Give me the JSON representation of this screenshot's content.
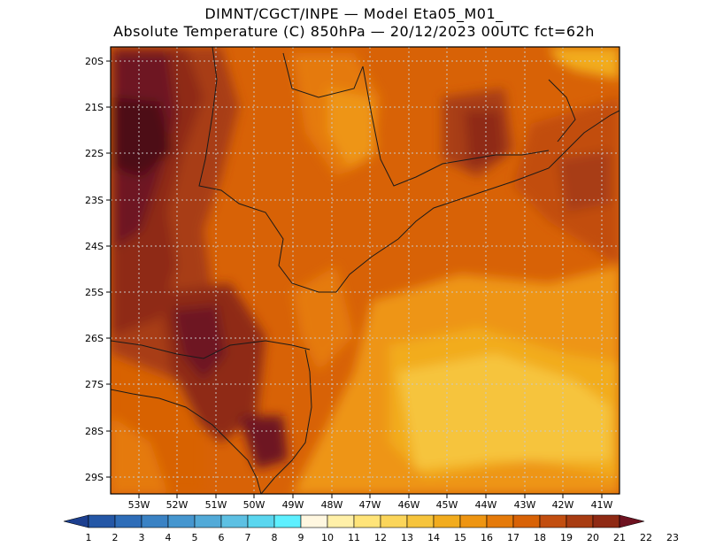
{
  "header": {
    "line1": "DIMNT/CGCT/INPE —  Model Eta05_M01_",
    "line2": "Absolute Temperature (C) 850hPa —  20/12/2023 00UTC fct=62h"
  },
  "map": {
    "lat_labels": [
      "20S",
      "21S",
      "22S",
      "23S",
      "24S",
      "25S",
      "26S",
      "27S",
      "28S",
      "29S"
    ],
    "lon_labels": [
      "53W",
      "52W",
      "51W",
      "50W",
      "49W",
      "48W",
      "47W",
      "46W",
      "45W",
      "44W",
      "43W",
      "42W",
      "41W"
    ],
    "lat_range": [
      -29.4,
      -19.7
    ],
    "lon_range": [
      -53.7,
      -40.6
    ],
    "grid": true
  },
  "colorbar": {
    "labels": [
      "1",
      "2",
      "3",
      "4",
      "5",
      "6",
      "7",
      "8",
      "9",
      "10",
      "11",
      "12",
      "13",
      "14",
      "15",
      "16",
      "17",
      "18",
      "19",
      "20",
      "21",
      "22",
      "23"
    ],
    "colors": [
      "#1c3f8f",
      "#2457a6",
      "#2e6db8",
      "#3a82c4",
      "#4596cf",
      "#52aad8",
      "#5dc0e3",
      "#5ad6ef",
      "#5ef0ff",
      "#fff7e0",
      "#fff0a8",
      "#ffe479",
      "#fbd55a",
      "#f6c43c",
      "#f2ac1e",
      "#ee9512",
      "#e57a0a",
      "#d86206",
      "#c24e10",
      "#a83c12",
      "#8f2a14",
      "#6e1220"
    ]
  }
}
